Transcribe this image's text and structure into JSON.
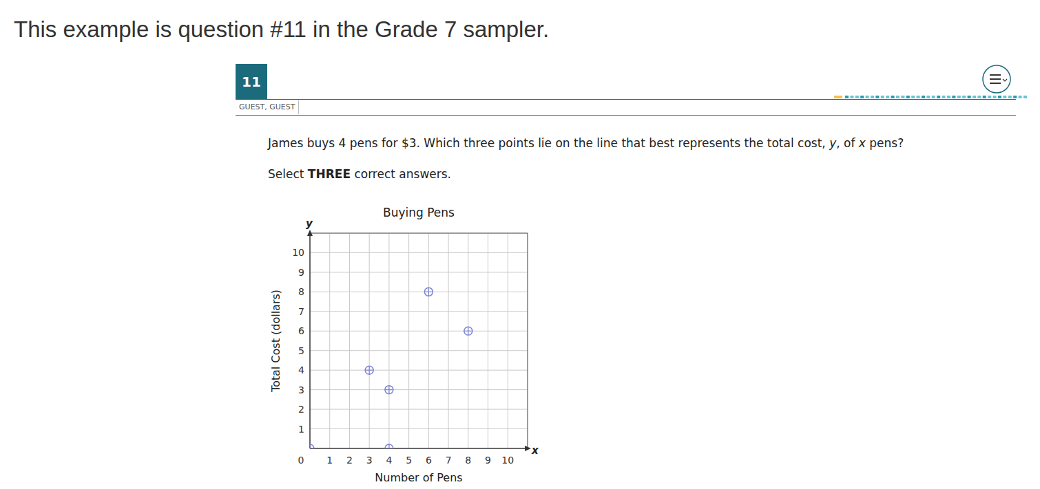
{
  "intro": "This example is question #11 in the Grade 7 sampler.",
  "item": {
    "number": "11",
    "user": "GUEST, GUEST",
    "question": [
      "James buys 4 pens for $3. Which three points lie on the line that best represents the total cost, ",
      "y",
      ", of ",
      "x",
      " pens?"
    ],
    "instruction": [
      "Select ",
      "THREE",
      " correct answers."
    ]
  },
  "chart_data": {
    "type": "scatter",
    "title": "Buying Pens",
    "x_label": "Number of Pens",
    "y_label": "Total Cost (dollars)",
    "x_axis_symbol": "x",
    "y_axis_symbol": "y",
    "x": [
      0,
      3,
      4,
      4,
      6,
      8
    ],
    "values": [
      0,
      4,
      3,
      0,
      8,
      6
    ],
    "color": "#7f86d4",
    "marker": "circle_plus",
    "xlim": [
      0,
      11
    ],
    "ylim": [
      0,
      11
    ],
    "xticks": [
      0,
      1,
      2,
      3,
      4,
      5,
      6,
      7,
      8,
      9,
      10
    ],
    "yticks": [
      1,
      2,
      3,
      4,
      5,
      6,
      7,
      8,
      9,
      10
    ],
    "grid": true
  }
}
